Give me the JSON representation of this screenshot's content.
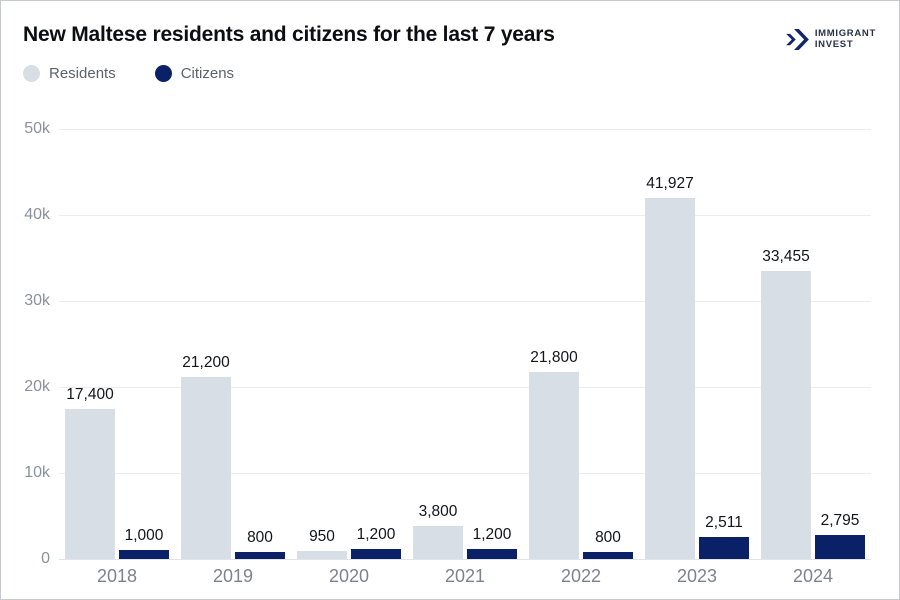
{
  "header": {
    "title": "New Maltese residents and citizens for the last 7 years",
    "logo": {
      "line1": "IMMIGRANT",
      "line2": "INVEST",
      "icon": "double-chevron-right",
      "color": "#14266B"
    }
  },
  "legend": {
    "items": [
      {
        "label": "Residents",
        "color": "#D8DEE6"
      },
      {
        "label": "Citizens",
        "color": "#0B2167"
      }
    ]
  },
  "colors": {
    "residents": "#D8DEE6",
    "citizens": "#0B2167",
    "gridline": "#EDEDEE",
    "axis_text": "#8A919B",
    "value_text": "#121519",
    "background": "#FFFFFF"
  },
  "chart_data": {
    "type": "bar",
    "title": "New Maltese residents and citizens for the last 7 years",
    "categories": [
      "2018",
      "2019",
      "2020",
      "2021",
      "2022",
      "2023",
      "2024"
    ],
    "series": [
      {
        "name": "Residents",
        "color": "#D8DEE6",
        "values": [
          17400,
          21200,
          950,
          3800,
          21800,
          41927,
          33455
        ],
        "labels": [
          "17,400",
          "21,200",
          "950",
          "3,800",
          "21,800",
          "41,927",
          "33,455"
        ]
      },
      {
        "name": "Citizens",
        "color": "#0B2167",
        "values": [
          1000,
          800,
          1200,
          1200,
          800,
          2511,
          2795
        ],
        "labels": [
          "1,000",
          "800",
          "1,200",
          "1,200",
          "800",
          "2,511",
          "2,795"
        ]
      }
    ],
    "xlabel": "",
    "ylabel": "",
    "ylim": [
      0,
      50000
    ],
    "yticks": [
      {
        "value": 0,
        "label": "0"
      },
      {
        "value": 10000,
        "label": "10k"
      },
      {
        "value": 20000,
        "label": "20k"
      },
      {
        "value": 30000,
        "label": "30k"
      },
      {
        "value": 40000,
        "label": "40k"
      },
      {
        "value": 50000,
        "label": "50k"
      }
    ],
    "grid": "horizontal",
    "legend_position": "top-left",
    "bar_value_labels": true
  }
}
